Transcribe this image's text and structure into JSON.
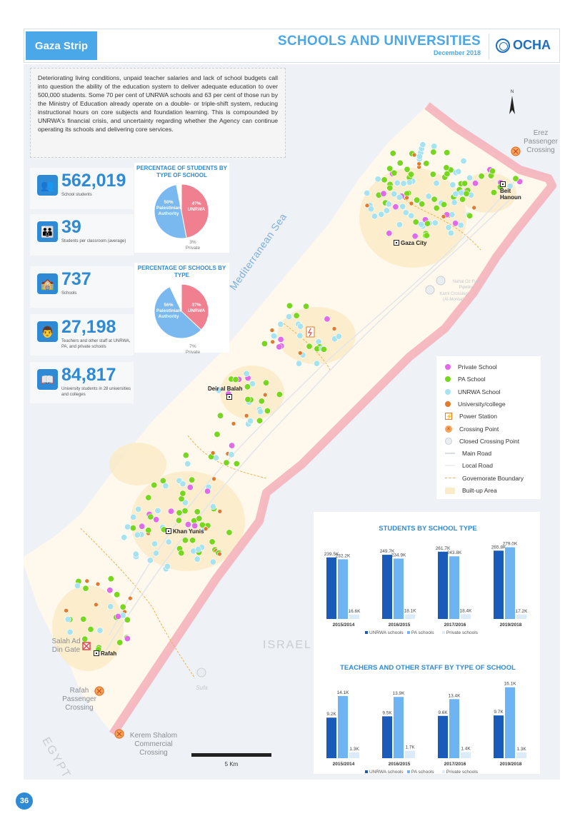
{
  "header": {
    "region": "Gaza Strip",
    "title": "SCHOOLS AND UNIVERSITIES",
    "date": "December 2018",
    "org": "OCHA"
  },
  "intro": "Deteriorating living conditions, unpaid teacher salaries and lack of school budgets call into question the ability of the education system to deliver adequate education to over 500,000 students. Some 70 per cent of UNRWA schools and 63 per cent of those run by the Ministry of Education already operate on a double- or triple-shift system, reducing instructional hours on core subjects and foundation learning. This is compounded by UNRWA's financial crisis, and uncertainty regarding whether the Agency can continue operating its schools and delivering core services.",
  "stats": [
    {
      "icon": "students-icon",
      "value": "562,019",
      "label": "School students"
    },
    {
      "icon": "classroom-icon",
      "value": "39",
      "label": "Students per classroom (average)"
    },
    {
      "icon": "school-building-icon",
      "value": "737",
      "label": "Schools"
    },
    {
      "icon": "teacher-icon",
      "value": "27,198",
      "label": "Teachers and other staff at UNRWA, PA, and private schools"
    },
    {
      "icon": "book-icon",
      "value": "84,817",
      "label": "University students in 28 universities and colleges"
    }
  ],
  "pie_students": {
    "title": "PERCENTAGE OF STUDENTS BY TYPE OF SCHOOL",
    "slices": [
      {
        "name": "UNRWA",
        "pct_label": "47%",
        "value": 47,
        "color": "#f08090"
      },
      {
        "name": "Palestinian Authority",
        "pct_label": "50%",
        "value": 50,
        "color": "#7ab8f0"
      },
      {
        "name": "Private",
        "pct_label": "3%",
        "value": 3,
        "color": "#ffffff"
      }
    ]
  },
  "pie_schools": {
    "title": "PERCENTAGE OF SCHOOLS BY TYPE",
    "slices": [
      {
        "name": "UNRWA",
        "pct_label": "37%",
        "value": 37,
        "color": "#f08090"
      },
      {
        "name": "Palestinian Authority",
        "pct_label": "56%",
        "value": 56,
        "color": "#7ab8f0"
      },
      {
        "name": "Private",
        "pct_label": "7%",
        "value": 7,
        "color": "#ffffff"
      }
    ]
  },
  "map": {
    "sea_label": "Mediterranean Sea",
    "countries": {
      "israel": "ISRAEL",
      "egypt": "EGYPT"
    },
    "places": [
      {
        "name": "Beit Hanoun",
        "kind": "town"
      },
      {
        "name": "Gaza City",
        "kind": "town"
      },
      {
        "name": "Deir al Balah",
        "kind": "town"
      },
      {
        "name": "Khan Yunis",
        "kind": "town"
      },
      {
        "name": "Rafah",
        "kind": "town"
      }
    ],
    "crossings": [
      {
        "name": "Erez Passenger Crossing",
        "status": "open"
      },
      {
        "name": "Salah Ad Din Gate",
        "status": "gate"
      },
      {
        "name": "Rafah Passenger Crossing",
        "status": "open"
      },
      {
        "name": "Kerem Shalom Commercial Crossing",
        "status": "open"
      },
      {
        "name": "Nahal Oz Fuel Pipeline",
        "status": "closed"
      },
      {
        "name": "Karni Crossing (Al-Montar)",
        "status": "closed"
      },
      {
        "name": "Sufa",
        "status": "closed"
      }
    ],
    "north_label": "N",
    "scale_label": "5 Km"
  },
  "legend": [
    {
      "label": "Private School",
      "symbol": "dot",
      "color": "#e06ae8"
    },
    {
      "label": "PA School",
      "symbol": "dot",
      "color": "#78d61e"
    },
    {
      "label": "UNRWA School",
      "symbol": "dot",
      "color": "#a6e3ef"
    },
    {
      "label": "University/college",
      "symbol": "dot",
      "color": "#e07a2c"
    },
    {
      "label": "Power Station",
      "symbol": "power-station-icon",
      "color": "#e07a2c"
    },
    {
      "label": "Crossing Point",
      "symbol": "crossing-icon",
      "color": "#f08a3a"
    },
    {
      "label": "Closed Crossing Point",
      "symbol": "closed-crossing-icon",
      "color": "#d9dde2"
    },
    {
      "label": "Main Road",
      "symbol": "line",
      "color": "#d9dde2"
    },
    {
      "label": "Local Road",
      "symbol": "line",
      "color": "#eef0f2"
    },
    {
      "label": "Governorate Boundary",
      "symbol": "dashed",
      "color": "#f0b050"
    },
    {
      "label": "Built-up Area",
      "symbol": "area",
      "color": "#fbecc8"
    }
  ],
  "chart_data": [
    {
      "type": "bar",
      "title": "STUDENTS BY SCHOOL TYPE",
      "categories": [
        "2015/2014",
        "2016/2015",
        "2017/2016",
        "2019/2018"
      ],
      "series": [
        {
          "name": "UNRWA schools",
          "values": [
            239.5,
            249.7,
            261.7,
            265.8
          ],
          "labels": [
            "239.5K",
            "249.7K",
            "261.7K",
            "265.8K"
          ],
          "color": "#1a5ab8"
        },
        {
          "name": "PA schools",
          "values": [
            232.2,
            234.9,
            243.8,
            279.0
          ],
          "labels": [
            "232.2K",
            "234.9K",
            "243.8K",
            "279.0K"
          ],
          "color": "#6eb4f2"
        },
        {
          "name": "Private schools",
          "values": [
            16.6,
            18.1,
            18.4,
            17.2
          ],
          "labels": [
            "16.6K",
            "18.1K",
            "18.4K",
            "17.2K"
          ],
          "color": "#dcebfa"
        }
      ]
    },
    {
      "type": "bar",
      "title": "TEACHERS AND OTHER STAFF BY TYPE OF SCHOOL",
      "categories": [
        "2015/2014",
        "2016/2015",
        "2017/2016",
        "2019/2018"
      ],
      "series": [
        {
          "name": "UNRWA schools",
          "values": [
            9.2,
            9.5,
            9.6,
            9.7
          ],
          "labels": [
            "9.2K",
            "9.5K",
            "9.6K",
            "9.7K"
          ],
          "color": "#1a5ab8"
        },
        {
          "name": "PA schools",
          "values": [
            14.1,
            13.9,
            13.4,
            16.1
          ],
          "labels": [
            "14.1K",
            "13.9K",
            "13.4K",
            "16.1K"
          ],
          "color": "#6eb4f2"
        },
        {
          "name": "Private schools",
          "values": [
            1.3,
            1.7,
            1.4,
            1.3
          ],
          "labels": [
            "1.3K",
            "1.7K",
            "1.4K",
            "1.3K"
          ],
          "color": "#dcebfa"
        }
      ]
    }
  ],
  "page_number": "36"
}
